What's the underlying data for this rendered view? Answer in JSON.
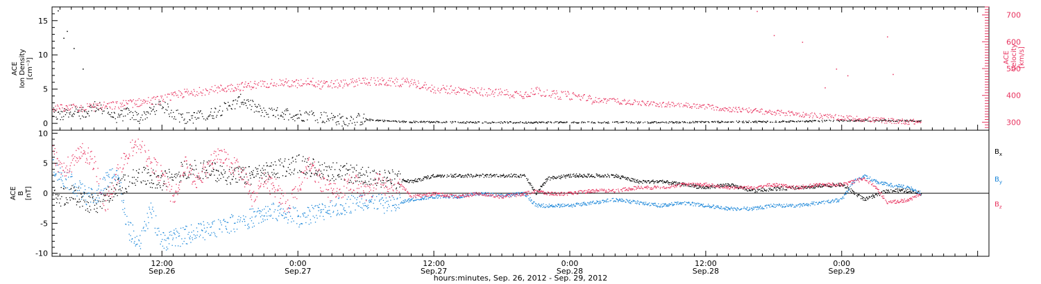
{
  "colors": {
    "black": "#000000",
    "red": "#e8335f",
    "blue": "#1a86d9",
    "axis": "#000000"
  },
  "x_axis": {
    "ticks": [
      {
        "time": "12:00",
        "date": "Sep.26",
        "hour": 12
      },
      {
        "time": "0:00",
        "date": "Sep.27",
        "hour": 24
      },
      {
        "time": "12:00",
        "date": "Sep.27",
        "hour": 36
      },
      {
        "time": "0:00",
        "date": "Sep.28",
        "hour": 48
      },
      {
        "time": "12:00",
        "date": "Sep.28",
        "hour": 60
      },
      {
        "time": "0:00",
        "date": "Sep.29",
        "hour": 72
      }
    ],
    "label": "hours:minutes, Sep. 26, 2012 - Sep. 29, 2012"
  },
  "chart_data": [
    {
      "type": "scatter",
      "panel": "plasma",
      "left_axis": {
        "title_lines": [
          "ACE",
          "Ion Density",
          "[cm⁻³]"
        ],
        "ticks": [
          "0",
          "5",
          "10",
          "15"
        ],
        "ylim": [
          -1,
          17
        ]
      },
      "right_axis": {
        "title_lines": [
          "ACE",
          "Velocity",
          "[km/s]"
        ],
        "ticks": [
          "300",
          "400",
          "500",
          "600",
          "700"
        ],
        "ylim": [
          270,
          730
        ],
        "color": "#e8335f"
      },
      "xlim_hours": [
        2.3,
        85
      ],
      "series": [
        {
          "axis": "left",
          "color": "#000000",
          "anchors": [
            [
              2.3,
              1.5
            ],
            [
              3,
              1
            ],
            [
              4,
              2
            ],
            [
              5,
              1.5
            ],
            [
              6,
              2.5
            ],
            [
              7,
              2
            ],
            [
              8,
              1
            ],
            [
              9,
              1.5
            ],
            [
              10,
              0.8
            ],
            [
              11,
              2
            ],
            [
              12,
              2.5
            ],
            [
              13,
              1.5
            ],
            [
              14,
              0.8
            ],
            [
              15,
              1
            ],
            [
              16,
              1.2
            ],
            [
              17,
              2
            ],
            [
              18,
              2.5
            ],
            [
              19,
              3.5
            ],
            [
              20,
              2.5
            ],
            [
              21,
              1.5
            ],
            [
              22,
              1.5
            ],
            [
              23,
              1.5
            ],
            [
              24,
              1.2
            ],
            [
              25,
              1.3
            ],
            [
              26,
              1
            ],
            [
              27,
              0.8
            ],
            [
              28,
              0.5
            ],
            [
              29,
              0.7
            ],
            [
              30,
              0.6
            ],
            [
              31,
              0.5
            ],
            [
              32,
              0.4
            ],
            [
              33,
              0.3
            ],
            [
              36,
              0.25
            ],
            [
              40,
              0.2
            ],
            [
              45,
              0.2
            ],
            [
              50,
              0.2
            ],
            [
              55,
              0.2
            ],
            [
              60,
              0.25
            ],
            [
              65,
              0.3
            ],
            [
              70,
              0.4
            ],
            [
              75,
              0.5
            ],
            [
              79,
              0.4
            ]
          ]
        },
        {
          "axis": "right",
          "color": "#e8335f",
          "anchors": [
            [
              2.3,
              350
            ],
            [
              5,
              355
            ],
            [
              8,
              365
            ],
            [
              10,
              375
            ],
            [
              12,
              385
            ],
            [
              14,
              410
            ],
            [
              16,
              420
            ],
            [
              18,
              430
            ],
            [
              20,
              440
            ],
            [
              22,
              450
            ],
            [
              24,
              445
            ],
            [
              25,
              455
            ],
            [
              26,
              440
            ],
            [
              28,
              445
            ],
            [
              30,
              455
            ],
            [
              32,
              450
            ],
            [
              34,
              450
            ],
            [
              36,
              425
            ],
            [
              38,
              420
            ],
            [
              40,
              415
            ],
            [
              42,
              410
            ],
            [
              44,
              405
            ],
            [
              45,
              420
            ],
            [
              46,
              405
            ],
            [
              48,
              400
            ],
            [
              50,
              385
            ],
            [
              52,
              380
            ],
            [
              55,
              370
            ],
            [
              58,
              365
            ],
            [
              60,
              360
            ],
            [
              62,
              350
            ],
            [
              64,
              345
            ],
            [
              66,
              338
            ],
            [
              68,
              332
            ],
            [
              70,
              325
            ],
            [
              72,
              318
            ],
            [
              74,
              312
            ],
            [
              76,
              307
            ],
            [
              78,
              303
            ],
            [
              79,
              302
            ]
          ]
        }
      ]
    },
    {
      "type": "scatter",
      "panel": "magnetic field",
      "left_axis": {
        "title_lines": [
          "ACE",
          "B",
          "[nT]"
        ],
        "ticks": [
          "-10",
          "-5",
          "0",
          "5",
          "10"
        ],
        "ylim": [
          -10.5,
          10.5
        ]
      },
      "legend": [
        {
          "name": "B",
          "sub": "x",
          "color": "#000000"
        },
        {
          "name": "B",
          "sub": "y",
          "color": "#1a86d9"
        },
        {
          "name": "B",
          "sub": "z",
          "color": "#e8335f"
        }
      ],
      "xlim_hours": [
        2.3,
        85
      ],
      "series": [
        {
          "name": "Bx",
          "color": "#000000",
          "anchors": [
            [
              2.3,
              -1
            ],
            [
              4,
              0
            ],
            [
              6,
              -2
            ],
            [
              8,
              1
            ],
            [
              10,
              3
            ],
            [
              12,
              2
            ],
            [
              14,
              4
            ],
            [
              16,
              4
            ],
            [
              18,
              3
            ],
            [
              20,
              3
            ],
            [
              22,
              4
            ],
            [
              24,
              5
            ],
            [
              26,
              4
            ],
            [
              28,
              3.5
            ],
            [
              30,
              3
            ],
            [
              32,
              2.5
            ],
            [
              34,
              2
            ],
            [
              36,
              3
            ],
            [
              38,
              3
            ],
            [
              40,
              3
            ],
            [
              42,
              3
            ],
            [
              44,
              3
            ],
            [
              45,
              0
            ],
            [
              46,
              2.5
            ],
            [
              48,
              3
            ],
            [
              50,
              3
            ],
            [
              52,
              3
            ],
            [
              54,
              2
            ],
            [
              56,
              2
            ],
            [
              58,
              1.5
            ],
            [
              60,
              1
            ],
            [
              62,
              1.5
            ],
            [
              64,
              0.5
            ],
            [
              66,
              0.8
            ],
            [
              68,
              1
            ],
            [
              70,
              1.2
            ],
            [
              72,
              1.5
            ],
            [
              74,
              -1
            ],
            [
              76,
              0.5
            ],
            [
              78,
              0.5
            ],
            [
              79,
              0
            ]
          ]
        },
        {
          "name": "By",
          "color": "#1a86d9",
          "anchors": [
            [
              2.3,
              5
            ],
            [
              3,
              3
            ],
            [
              4,
              2
            ],
            [
              5,
              0
            ],
            [
              6,
              -1
            ],
            [
              7,
              2
            ],
            [
              8,
              4
            ],
            [
              9,
              -6
            ],
            [
              10,
              -8
            ],
            [
              11,
              -3
            ],
            [
              12,
              -8
            ],
            [
              14,
              -7
            ],
            [
              16,
              -6
            ],
            [
              18,
              -5
            ],
            [
              20,
              -4
            ],
            [
              22,
              -3
            ],
            [
              24,
              -4
            ],
            [
              26,
              -3
            ],
            [
              28,
              -2
            ],
            [
              30,
              -1
            ],
            [
              32,
              -2
            ],
            [
              34,
              -1
            ],
            [
              36,
              -0.5
            ],
            [
              38,
              -0.5
            ],
            [
              40,
              0
            ],
            [
              42,
              -0.3
            ],
            [
              44,
              0
            ],
            [
              45,
              -2
            ],
            [
              46,
              -2
            ],
            [
              48,
              -2
            ],
            [
              50,
              -1.5
            ],
            [
              52,
              -1
            ],
            [
              54,
              -1.5
            ],
            [
              56,
              -2
            ],
            [
              58,
              -1.5
            ],
            [
              60,
              -2
            ],
            [
              62,
              -2.5
            ],
            [
              64,
              -2.5
            ],
            [
              66,
              -2
            ],
            [
              68,
              -2
            ],
            [
              70,
              -1.5
            ],
            [
              72,
              -1
            ],
            [
              73,
              2
            ],
            [
              74,
              3
            ],
            [
              75,
              2
            ],
            [
              76,
              1.5
            ],
            [
              78,
              1
            ],
            [
              79,
              0
            ]
          ]
        },
        {
          "name": "Bz",
          "color": "#e8335f",
          "anchors": [
            [
              2.3,
              7
            ],
            [
              3,
              4
            ],
            [
              4,
              5
            ],
            [
              5,
              7
            ],
            [
              6,
              5
            ],
            [
              7,
              -2
            ],
            [
              8,
              3
            ],
            [
              9,
              7
            ],
            [
              10,
              8
            ],
            [
              11,
              5
            ],
            [
              12,
              3
            ],
            [
              13,
              -1
            ],
            [
              14,
              5
            ],
            [
              15,
              2
            ],
            [
              16,
              4
            ],
            [
              17,
              7
            ],
            [
              18,
              5
            ],
            [
              19,
              4
            ],
            [
              20,
              -1
            ],
            [
              21,
              2
            ],
            [
              22,
              1
            ],
            [
              23,
              -2
            ],
            [
              24,
              1
            ],
            [
              25,
              5
            ],
            [
              26,
              2
            ],
            [
              27,
              0
            ],
            [
              28,
              1
            ],
            [
              29,
              2
            ],
            [
              30,
              0
            ],
            [
              31,
              2
            ],
            [
              32,
              1
            ],
            [
              33,
              1.5
            ],
            [
              34,
              -0.5
            ],
            [
              36,
              0
            ],
            [
              38,
              -0.5
            ],
            [
              40,
              0
            ],
            [
              42,
              -0.5
            ],
            [
              44,
              0
            ],
            [
              45,
              0.5
            ],
            [
              46,
              0
            ],
            [
              48,
              0
            ],
            [
              50,
              0.5
            ],
            [
              52,
              0.5
            ],
            [
              54,
              1
            ],
            [
              56,
              1
            ],
            [
              58,
              1.5
            ],
            [
              60,
              1.5
            ],
            [
              62,
              1
            ],
            [
              64,
              1
            ],
            [
              66,
              1.5
            ],
            [
              68,
              1
            ],
            [
              70,
              1.5
            ],
            [
              72,
              1.5
            ],
            [
              73,
              2
            ],
            [
              74,
              2.5
            ],
            [
              75,
              1
            ],
            [
              76,
              -1.5
            ],
            [
              78,
              -1
            ],
            [
              79,
              0
            ]
          ]
        }
      ]
    }
  ]
}
